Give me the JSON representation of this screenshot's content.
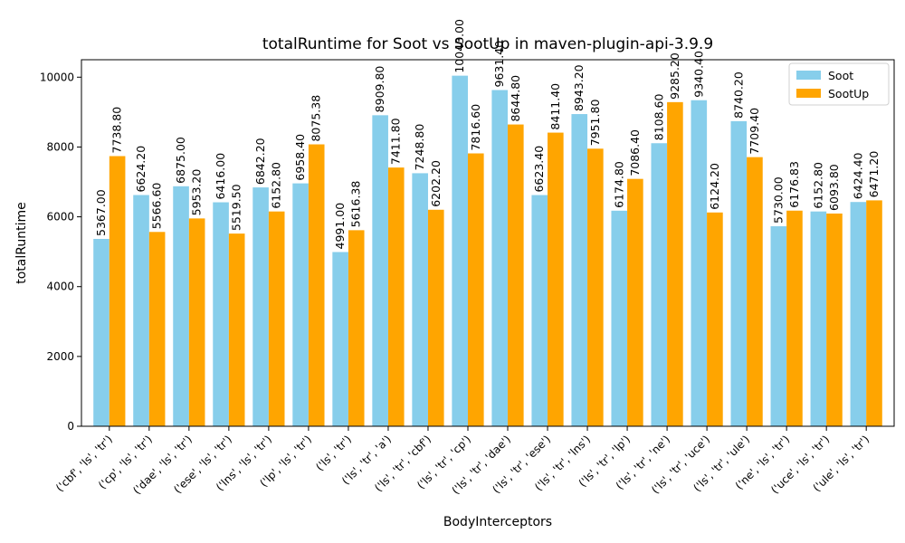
{
  "chart_data": {
    "type": "bar",
    "title": "totalRuntime for Soot vs SootUp in maven-plugin-api-3.9.9",
    "xlabel": "BodyInterceptors",
    "ylabel": "totalRuntime",
    "ylim": [
      0,
      10500
    ],
    "yticks": [
      0,
      2000,
      4000,
      6000,
      8000,
      10000
    ],
    "grid": false,
    "legend_position": "top-right",
    "categories": [
      "('cbf', 'ls', 'tr')",
      "('cp', 'ls', 'tr')",
      "('dae', 'ls', 'tr')",
      "('ese', 'ls', 'tr')",
      "('lns', 'ls', 'tr')",
      "('lp', 'ls', 'tr')",
      "('ls', 'tr')",
      "('ls', 'tr', 'a')",
      "('ls', 'tr', 'cbf')",
      "('ls', 'tr', 'cp')",
      "('ls', 'tr', 'dae')",
      "('ls', 'tr', 'ese')",
      "('ls', 'tr', 'lns')",
      "('ls', 'tr', 'lp')",
      "('ls', 'tr', 'ne')",
      "('ls', 'tr', 'uce')",
      "('ls', 'tr', 'ule')",
      "('ne', 'ls', 'tr')",
      "('uce', 'ls', 'tr')",
      "('ule', 'ls', 'tr')"
    ],
    "series": [
      {
        "name": "Soot",
        "color": "#87ceeb",
        "values": [
          5367.0,
          6624.2,
          6875.0,
          6416.0,
          6842.2,
          6958.4,
          4991.0,
          8909.8,
          7248.8,
          10043.0,
          9631.4,
          6623.4,
          8943.2,
          6174.8,
          8108.6,
          9340.4,
          8740.2,
          5730.0,
          6152.8,
          6424.4
        ],
        "labels": [
          "5367.00",
          "6624.20",
          "6875.00",
          "6416.00",
          "6842.20",
          "6958.40",
          "4991.00",
          "8909.80",
          "7248.80",
          "10043.00",
          "9631.40",
          "6623.40",
          "8943.20",
          "6174.80",
          "8108.60",
          "9340.40",
          "8740.20",
          "5730.00",
          "6152.80",
          "6424.40"
        ]
      },
      {
        "name": "SootUp",
        "color": "#ffa500",
        "values": [
          7738.8,
          5566.6,
          5953.2,
          5519.5,
          6152.8,
          8075.38,
          5616.38,
          7411.8,
          6202.2,
          7816.6,
          8644.8,
          8411.4,
          7951.8,
          7086.4,
          9285.2,
          6124.2,
          7709.4,
          6176.83,
          6093.8,
          6471.2
        ],
        "labels": [
          "7738.80",
          "5566.60",
          "5953.20",
          "5519.50",
          "6152.80",
          "8075.38",
          "5616.38",
          "7411.80",
          "6202.20",
          "7816.60",
          "8644.80",
          "8411.40",
          "7951.80",
          "7086.40",
          "9285.20",
          "6124.20",
          "7709.40",
          "6176.83",
          "6093.80",
          "6471.20"
        ]
      }
    ]
  }
}
